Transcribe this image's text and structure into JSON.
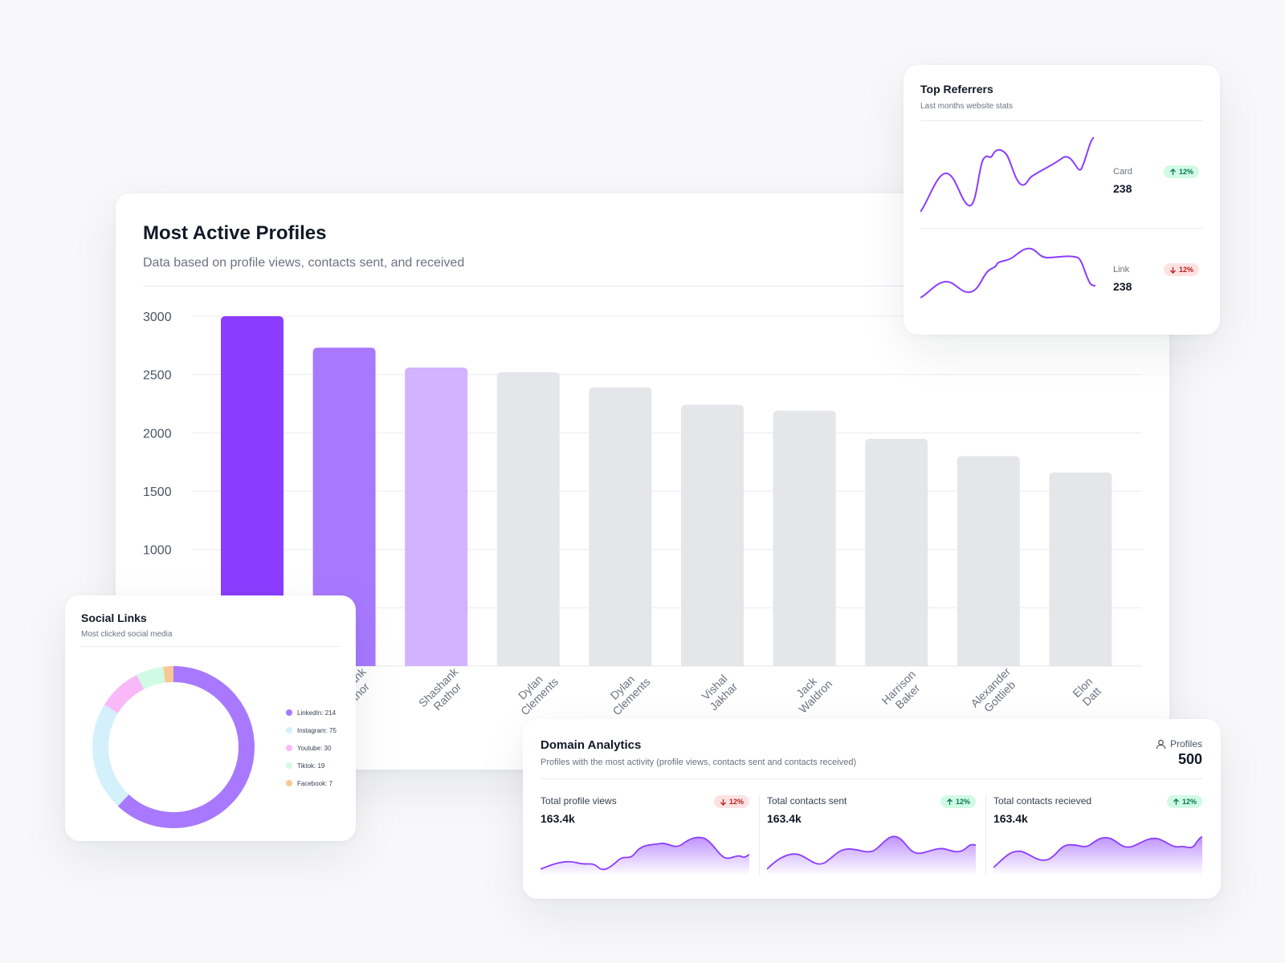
{
  "colors": {
    "accent": "#8b3dff",
    "accent_mid": "#a879ff",
    "accent_light": "#d1b3ff",
    "bar_gray": "#e5e6ea",
    "up_green": "#047857",
    "down_red": "#b91c1c"
  },
  "most_active": {
    "title": "Most Active Profiles",
    "subtitle": "Data based on profile views, contacts sent, and received"
  },
  "chart_data": {
    "type": "bar",
    "title": "Most Active Profiles",
    "ylim": [
      0,
      3000
    ],
    "y_ticks": [
      1000,
      1500,
      2000,
      2500,
      3000
    ],
    "grid": true,
    "categories": [
      [
        "",
        "Rathor"
      ],
      [
        "Shashank",
        "Rathor"
      ],
      [
        "Shashank",
        "Rathor"
      ],
      [
        "Dylan",
        "Clements"
      ],
      [
        "Dylan",
        "Clements"
      ],
      [
        "Vishal",
        "Jakhar"
      ],
      [
        "Jack",
        "Waldron"
      ],
      [
        "Harrison",
        "Baker"
      ],
      [
        "Alexander",
        "Gottlieb"
      ],
      [
        "Elon",
        "Datt"
      ]
    ],
    "values": [
      3000,
      2730,
      2560,
      2520,
      2390,
      2240,
      2190,
      1950,
      1800,
      1660
    ],
    "highlight": [
      "accent",
      "accent_mid",
      "accent_light",
      "bar_gray",
      "bar_gray",
      "bar_gray",
      "bar_gray",
      "bar_gray",
      "bar_gray",
      "bar_gray"
    ]
  },
  "referrers": {
    "title": "Top Referrers",
    "subtitle": "Last months website stats",
    "items": [
      {
        "label": "Card",
        "value": "238",
        "change": "12%",
        "direction": "up"
      },
      {
        "label": "Link",
        "value": "238",
        "change": "12%",
        "direction": "down"
      }
    ]
  },
  "social": {
    "title": "Social Links",
    "subtitle": "Most clicked social media",
    "items": [
      {
        "label": "LinkedIn: 214",
        "value": 214,
        "color": "#a879ff"
      },
      {
        "label": "Instagram: 75",
        "value": 75,
        "color": "#d4f1fb"
      },
      {
        "label": "Youtube: 30",
        "value": 30,
        "color": "#f9b8f8"
      },
      {
        "label": "Tiktok: 19",
        "value": 19,
        "color": "#d1fae5"
      },
      {
        "label": "Facebook: 7",
        "value": 7,
        "color": "#f8c796"
      }
    ]
  },
  "domain": {
    "title": "Domain Analytics",
    "subtitle": "Profiles with the most activity (profile views, contacts sent and contacts received)",
    "profiles_label": "Profiles",
    "profiles_value": "500",
    "metrics": [
      {
        "label": "Total profile views",
        "value": "163.4k",
        "change": "12%",
        "direction": "down"
      },
      {
        "label": "Total contacts sent",
        "value": "163.4k",
        "change": "12%",
        "direction": "up"
      },
      {
        "label": "Total contacts recieved",
        "value": "163.4k",
        "change": "12%",
        "direction": "up"
      }
    ]
  }
}
